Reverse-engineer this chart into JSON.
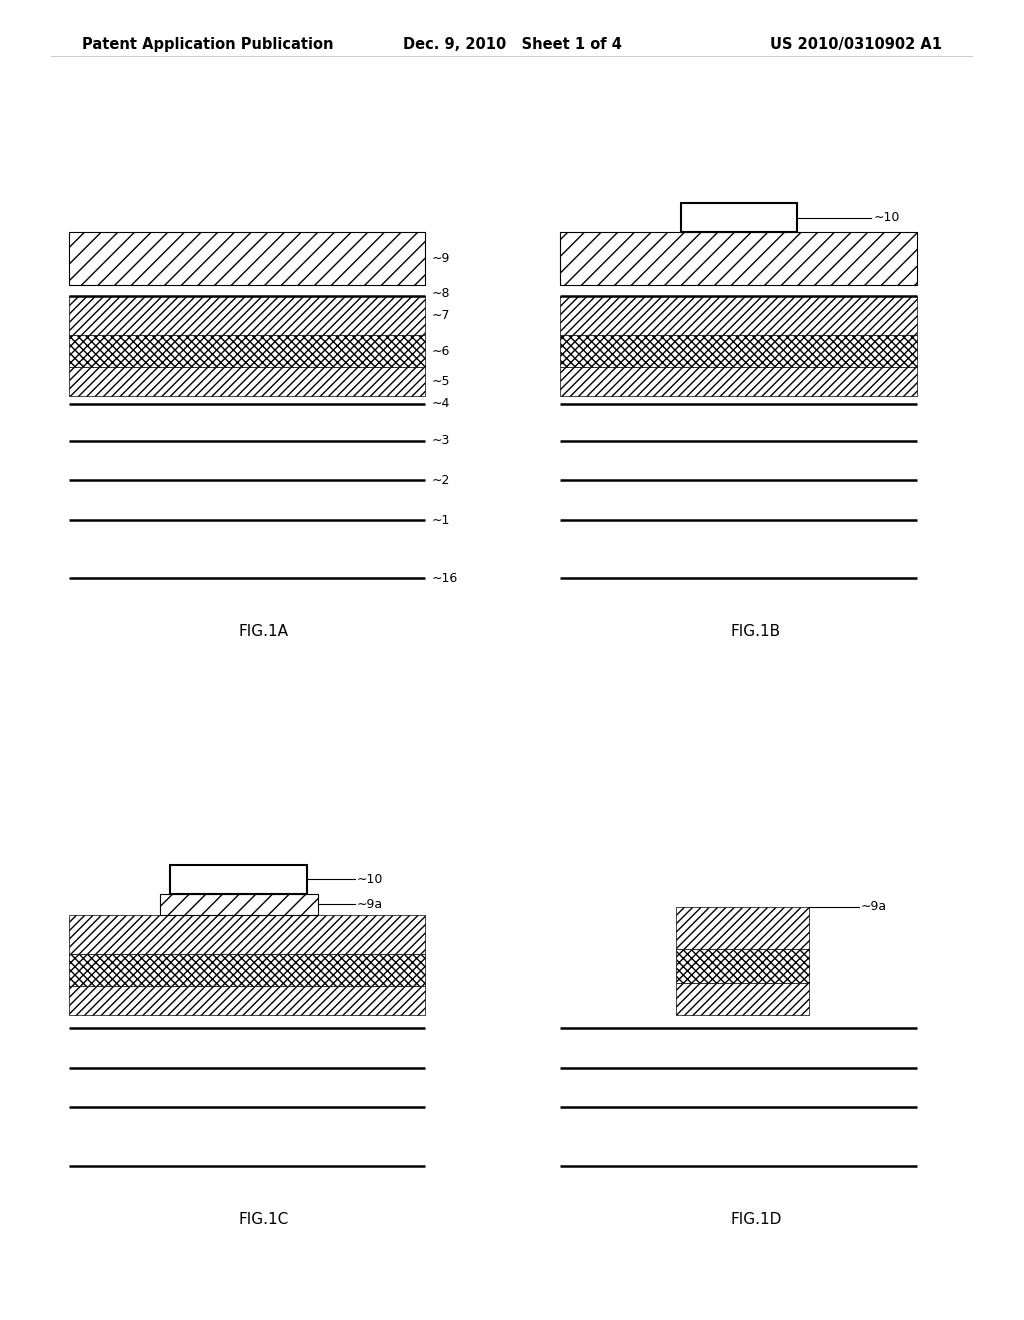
{
  "bg_color": "#ffffff",
  "header_left": "Patent Application Publication",
  "header_center": "Dec. 9, 2010   Sheet 1 of 4",
  "header_right": "US 2010/0310902 A1",
  "fig_labels": [
    "FIG.1A",
    "FIG.1B",
    "FIG.1C",
    "FIG.1D"
  ]
}
